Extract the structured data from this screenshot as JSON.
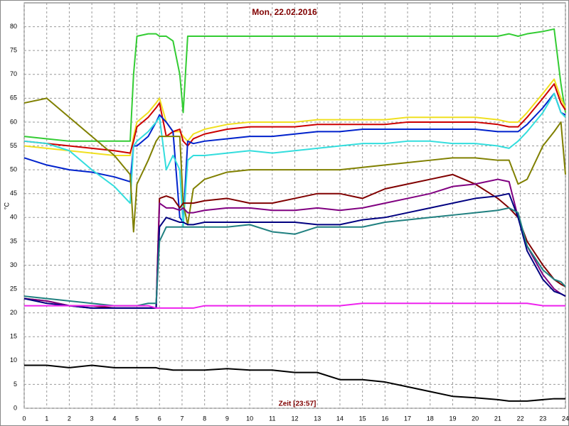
{
  "chart_data": {
    "type": "line",
    "title": "Mon, 22.02.2016",
    "x_label": "Zeit [23:57]",
    "y_label": "°C",
    "xlim": [
      0,
      24
    ],
    "ylim": [
      0,
      85
    ],
    "xticks": [
      0,
      1,
      2,
      3,
      4,
      5,
      6,
      7,
      8,
      9,
      10,
      11,
      12,
      13,
      14,
      15,
      16,
      17,
      18,
      19,
      20,
      21,
      22,
      23,
      24
    ],
    "yticks": [
      0,
      5,
      10,
      15,
      20,
      25,
      30,
      35,
      40,
      45,
      50,
      55,
      60,
      65,
      70,
      75,
      80
    ],
    "grid": true,
    "x": [
      0,
      1,
      2,
      3,
      4,
      4.7,
      4.85,
      5,
      5.5,
      5.85,
      6,
      6.3,
      6.6,
      6.9,
      7.05,
      7.25,
      7.5,
      8,
      9,
      10,
      11,
      12,
      13,
      14,
      15,
      16,
      17,
      18,
      19,
      20,
      21,
      21.5,
      21.9,
      22.3,
      23,
      23.5,
      23.8,
      24
    ],
    "series": [
      {
        "color": "#33cc33",
        "values": [
          57,
          56.5,
          56,
          56,
          56,
          56,
          70,
          78,
          78.5,
          78.5,
          78,
          78,
          77,
          70,
          62,
          78,
          78,
          78,
          78,
          78,
          78,
          78,
          78,
          78,
          78,
          78,
          78,
          78,
          78,
          78,
          78,
          78.5,
          78,
          78.5,
          79,
          79.5,
          68,
          62
        ]
      },
      {
        "color": "#f0e020",
        "values": [
          55,
          54.5,
          54,
          53.5,
          53,
          53,
          57,
          60,
          62,
          64,
          65,
          60,
          58,
          58,
          57,
          56,
          57.5,
          58.5,
          59.5,
          60,
          60,
          60,
          60.5,
          60.5,
          60.5,
          60.5,
          61,
          61,
          61,
          61,
          60.5,
          60,
          60,
          62,
          66,
          69,
          65,
          63
        ]
      },
      {
        "color": "#cc0000",
        "values": [
          56,
          55.5,
          55,
          54.5,
          54,
          53.5,
          56,
          59,
          61,
          63,
          64,
          57,
          58,
          58.5,
          56,
          55,
          56.5,
          57.5,
          58.5,
          59,
          59,
          59,
          59.5,
          59.5,
          59.5,
          59.5,
          60,
          60,
          60,
          60,
          59.5,
          59,
          59,
          61,
          65,
          68,
          64,
          62.5
        ]
      },
      {
        "color": "#0022cc",
        "values": [
          52.5,
          51,
          50,
          49.5,
          48.5,
          47.5,
          55,
          55,
          57,
          60,
          61.5,
          60,
          58,
          40,
          39,
          56,
          55.5,
          56,
          56.5,
          57,
          57,
          57.5,
          58,
          58,
          58.5,
          58.5,
          58.5,
          58.5,
          58.5,
          58.5,
          58,
          58,
          58,
          59.5,
          63,
          66,
          62,
          61.5
        ]
      },
      {
        "color": "#33dddd",
        "values": [
          56,
          55.5,
          54,
          50,
          46.5,
          43,
          55,
          56,
          58,
          60,
          61,
          50,
          53,
          50,
          38,
          52,
          53,
          53,
          53.5,
          54,
          53.5,
          54,
          54.5,
          55,
          55.5,
          55.5,
          56,
          56,
          55.5,
          55.5,
          55,
          54.5,
          56,
          58,
          62,
          66,
          62,
          61
        ]
      },
      {
        "color": "#808000",
        "values": [
          64,
          65,
          61,
          57,
          53,
          49,
          37,
          47,
          52,
          56,
          57,
          57,
          57,
          57,
          43,
          38.5,
          46,
          48,
          49.5,
          50,
          50,
          50,
          50,
          50,
          50.5,
          51,
          51.5,
          52,
          52.5,
          52.5,
          52,
          52,
          47,
          48,
          55,
          58,
          60,
          49
        ]
      },
      {
        "color": "#800000",
        "values": [
          23,
          22.5,
          21.5,
          21.5,
          21,
          21,
          21,
          21,
          21,
          21,
          44,
          44.5,
          44,
          42,
          43,
          43,
          43,
          43.5,
          44,
          43,
          43,
          44,
          45,
          45,
          44,
          46,
          47,
          48,
          49,
          47,
          44,
          42,
          40,
          35,
          30,
          27,
          26,
          25.5
        ]
      },
      {
        "color": "#800080",
        "values": [
          23,
          22.5,
          21.5,
          21,
          21,
          21,
          21,
          21,
          21,
          21,
          43,
          42,
          42,
          41.5,
          42,
          41,
          41,
          41.5,
          42,
          42,
          41.5,
          41.5,
          42,
          41.5,
          42,
          43,
          44,
          45,
          46.5,
          47,
          48,
          47.5,
          40,
          34,
          28,
          25,
          24,
          23.5
        ]
      },
      {
        "color": "#000080",
        "values": [
          23,
          22,
          21.5,
          21,
          21,
          21,
          21,
          21,
          21,
          21,
          38,
          40,
          39.5,
          39,
          39,
          38.5,
          38.5,
          39,
          39,
          39,
          39,
          39,
          38.5,
          38.5,
          39.5,
          40,
          41,
          42,
          43,
          44,
          44.5,
          45,
          40,
          33,
          27,
          24.5,
          24,
          23.5
        ]
      },
      {
        "color": "#208080",
        "values": [
          23.5,
          23,
          22.5,
          22,
          21.5,
          21.5,
          21.5,
          21.5,
          22,
          22,
          35,
          38,
          38,
          38,
          38,
          38,
          38,
          38,
          38,
          38.5,
          37,
          36.5,
          38,
          38,
          38,
          39,
          39.5,
          40,
          40.5,
          41,
          41.5,
          42,
          41,
          34,
          29,
          27,
          26.5,
          25.5
        ]
      },
      {
        "color": "#ee22ee",
        "values": [
          21.5,
          21.5,
          21.5,
          21.5,
          21.5,
          21.5,
          21.5,
          21.5,
          21.5,
          21,
          21,
          21,
          21,
          21,
          21,
          21,
          21,
          21.5,
          21.5,
          21.5,
          21.5,
          21.5,
          21.5,
          21.5,
          22,
          22,
          22,
          22,
          22,
          22,
          22,
          22,
          22,
          22,
          21.5,
          21.5,
          21.5,
          21.5
        ]
      },
      {
        "color": "#000000",
        "values": [
          9,
          9,
          8.5,
          9,
          8.5,
          8.5,
          8.5,
          8.5,
          8.5,
          8.5,
          8.3,
          8.2,
          8,
          8,
          8,
          8,
          8,
          8,
          8.3,
          8,
          8,
          7.5,
          7.5,
          6,
          6,
          5.5,
          4.5,
          3.5,
          2.5,
          2.2,
          1.8,
          1.5,
          1.5,
          1.5,
          1.8,
          2,
          2,
          2
        ]
      }
    ]
  }
}
